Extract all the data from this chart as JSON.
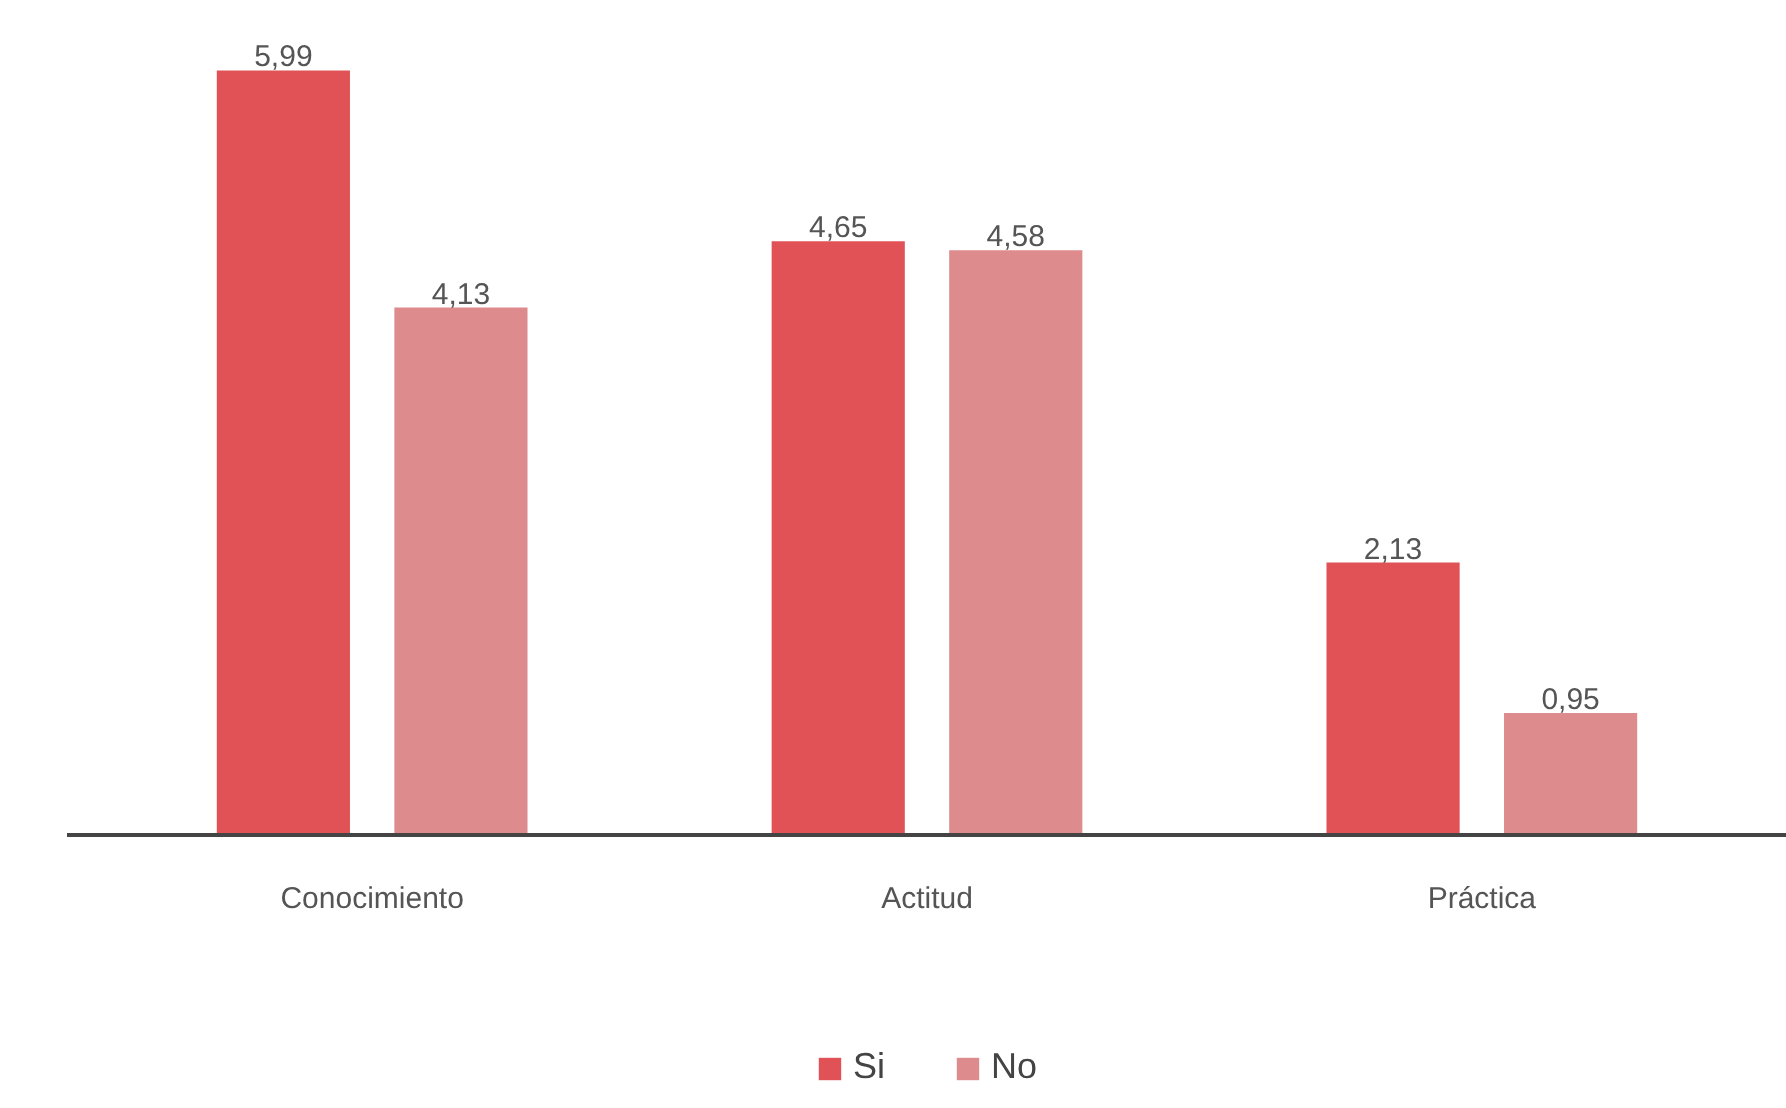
{
  "chart_data": {
    "type": "bar",
    "categories": [
      "Conocimiento",
      "Actitud",
      "Práctica"
    ],
    "series": [
      {
        "name": "Si",
        "color": "#e05256",
        "values": [
          5.99,
          4.65,
          2.13
        ],
        "value_labels": [
          "5,99",
          "4,65",
          "2,13"
        ]
      },
      {
        "name": "No",
        "color": "#de8b8d",
        "values": [
          4.13,
          4.58,
          0.95
        ],
        "value_labels": [
          "4,13",
          "4,58",
          "0,95"
        ]
      }
    ],
    "legend": "bottom",
    "tick_labels": "x"
  }
}
